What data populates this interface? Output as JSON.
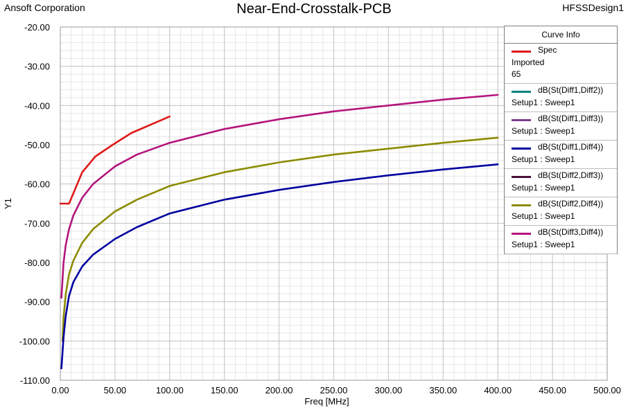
{
  "header": {
    "left_text": "Ansoft Corporation",
    "title": "Near-End-Crosstalk-PCB",
    "right_text": "HFSSDesign1"
  },
  "legend": {
    "title": "Curve Info",
    "entries": [
      {
        "name": "Spec",
        "sub": [
          "Imported",
          "65"
        ],
        "color": "#e01818"
      },
      {
        "name": "dB(St(Diff1,Diff2))",
        "sub": [
          "Setup1 : Sweep1"
        ],
        "color": "#008080"
      },
      {
        "name": "dB(St(Diff1,Diff3))",
        "sub": [
          "Setup1 : Sweep1"
        ],
        "color": "#7d3c8c"
      },
      {
        "name": "dB(St(Diff1,Diff4))",
        "sub": [
          "Setup1 : Sweep1"
        ],
        "color": "#0000a0"
      },
      {
        "name": "dB(St(Diff2,Diff3))",
        "sub": [
          "Setup1 : Sweep1"
        ],
        "color": "#4b0f3c"
      },
      {
        "name": "dB(St(Diff2,Diff4))",
        "sub": [
          "Setup1 : Sweep1"
        ],
        "color": "#8b8b00"
      },
      {
        "name": "dB(St(Diff3,Diff4))",
        "sub": [
          "Setup1 : Sweep1"
        ],
        "color": "#b4147c"
      }
    ]
  },
  "chart_data": {
    "type": "line",
    "xlabel": "Freq [MHz]",
    "ylabel": "Y1",
    "xlim": [
      0,
      500
    ],
    "ylim": [
      -110,
      -20
    ],
    "x_ticks": [
      "0.00",
      "50.00",
      "100.00",
      "150.00",
      "200.00",
      "250.00",
      "300.00",
      "350.00",
      "400.00",
      "450.00",
      "500.00"
    ],
    "y_ticks": [
      "-20.00",
      "-30.00",
      "-40.00",
      "-50.00",
      "-60.00",
      "-70.00",
      "-80.00",
      "-90.00",
      "-100.00",
      "-110.00"
    ],
    "grid": true,
    "legend_position": "top-right",
    "series": [
      {
        "name": "Spec",
        "color": "#e01818",
        "x": [
          0,
          8,
          20,
          32,
          48,
          65,
          100
        ],
        "y": [
          -65,
          -65,
          -57,
          -53,
          -50,
          -47,
          -42.8
        ]
      },
      {
        "name": "dB(St(Diff3,Diff4))",
        "color": "#b4147c",
        "x": [
          1,
          3,
          5,
          8,
          12,
          20,
          30,
          50,
          70,
          100,
          150,
          200,
          250,
          300,
          350,
          400
        ],
        "y": [
          -89,
          -80,
          -75.5,
          -71.5,
          -68,
          -63.5,
          -60,
          -55.5,
          -52.5,
          -49.5,
          -46,
          -43.5,
          -41.5,
          -40,
          -38.5,
          -37.3
        ]
      },
      {
        "name": "dB(St(Diff2,Diff4))",
        "color": "#8b8b00",
        "x": [
          2,
          3,
          5,
          8,
          12,
          20,
          30,
          50,
          70,
          100,
          150,
          200,
          250,
          300,
          350,
          400
        ],
        "y": [
          -100,
          -94,
          -88,
          -83,
          -79.5,
          -75,
          -71.5,
          -67,
          -64,
          -60.5,
          -57,
          -54.5,
          -52.5,
          -51,
          -49.5,
          -48.2
        ]
      },
      {
        "name": "dB(St(Diff1,Diff4))",
        "color": "#0000a0",
        "x": [
          1,
          3,
          5,
          8,
          12,
          20,
          30,
          50,
          70,
          100,
          150,
          200,
          250,
          300,
          350,
          400
        ],
        "y": [
          -107,
          -99,
          -93.5,
          -88.5,
          -85,
          -81,
          -78,
          -74,
          -71,
          -67.5,
          -64,
          -61.5,
          -59.5,
          -57.8,
          -56.3,
          -55
        ]
      }
    ]
  }
}
